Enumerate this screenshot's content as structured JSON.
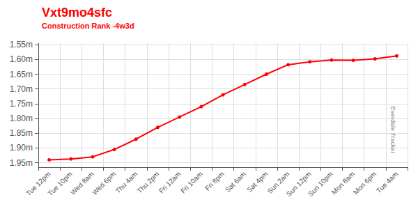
{
  "chart_data": {
    "type": "line",
    "title": "Vxt9mo4sfc",
    "subtitle": "Construction Rank -4w3d",
    "annotations": [
      "Everdale Tracker"
    ],
    "categories": [
      "Tue 12pm",
      "Tue 10pm",
      "Wed 8am",
      "Wed 6pm",
      "Thu 4am",
      "Thu 2pm",
      "Fri 12am",
      "Fri 10am",
      "Fri 8pm",
      "Sat 6am",
      "Sat 4pm",
      "Sun 2am",
      "Sun 12pm",
      "Sun 10pm",
      "Mon 8am",
      "Mon 6pm",
      "Tue 4am"
    ],
    "values": [
      1.94,
      1.937,
      1.93,
      1.905,
      1.87,
      1.83,
      1.795,
      1.76,
      1.72,
      1.685,
      1.65,
      1.618,
      1.608,
      1.602,
      1.603,
      1.598,
      1.588
    ],
    "color": "#ff0000",
    "marker": "circle",
    "ylim": [
      1.965,
      1.545
    ],
    "yticks": [
      {
        "value": 1.55,
        "label": "1.55m"
      },
      {
        "value": 1.6,
        "label": "1.60m"
      },
      {
        "value": 1.65,
        "label": "1.65m"
      },
      {
        "value": 1.7,
        "label": "1.70m"
      },
      {
        "value": 1.75,
        "label": "1.75m"
      },
      {
        "value": 1.8,
        "label": "1.80m"
      },
      {
        "value": 1.85,
        "label": "1.85m"
      },
      {
        "value": 1.9,
        "label": "1.90m"
      },
      {
        "value": 1.95,
        "label": "1.95m"
      }
    ],
    "grid": true
  }
}
